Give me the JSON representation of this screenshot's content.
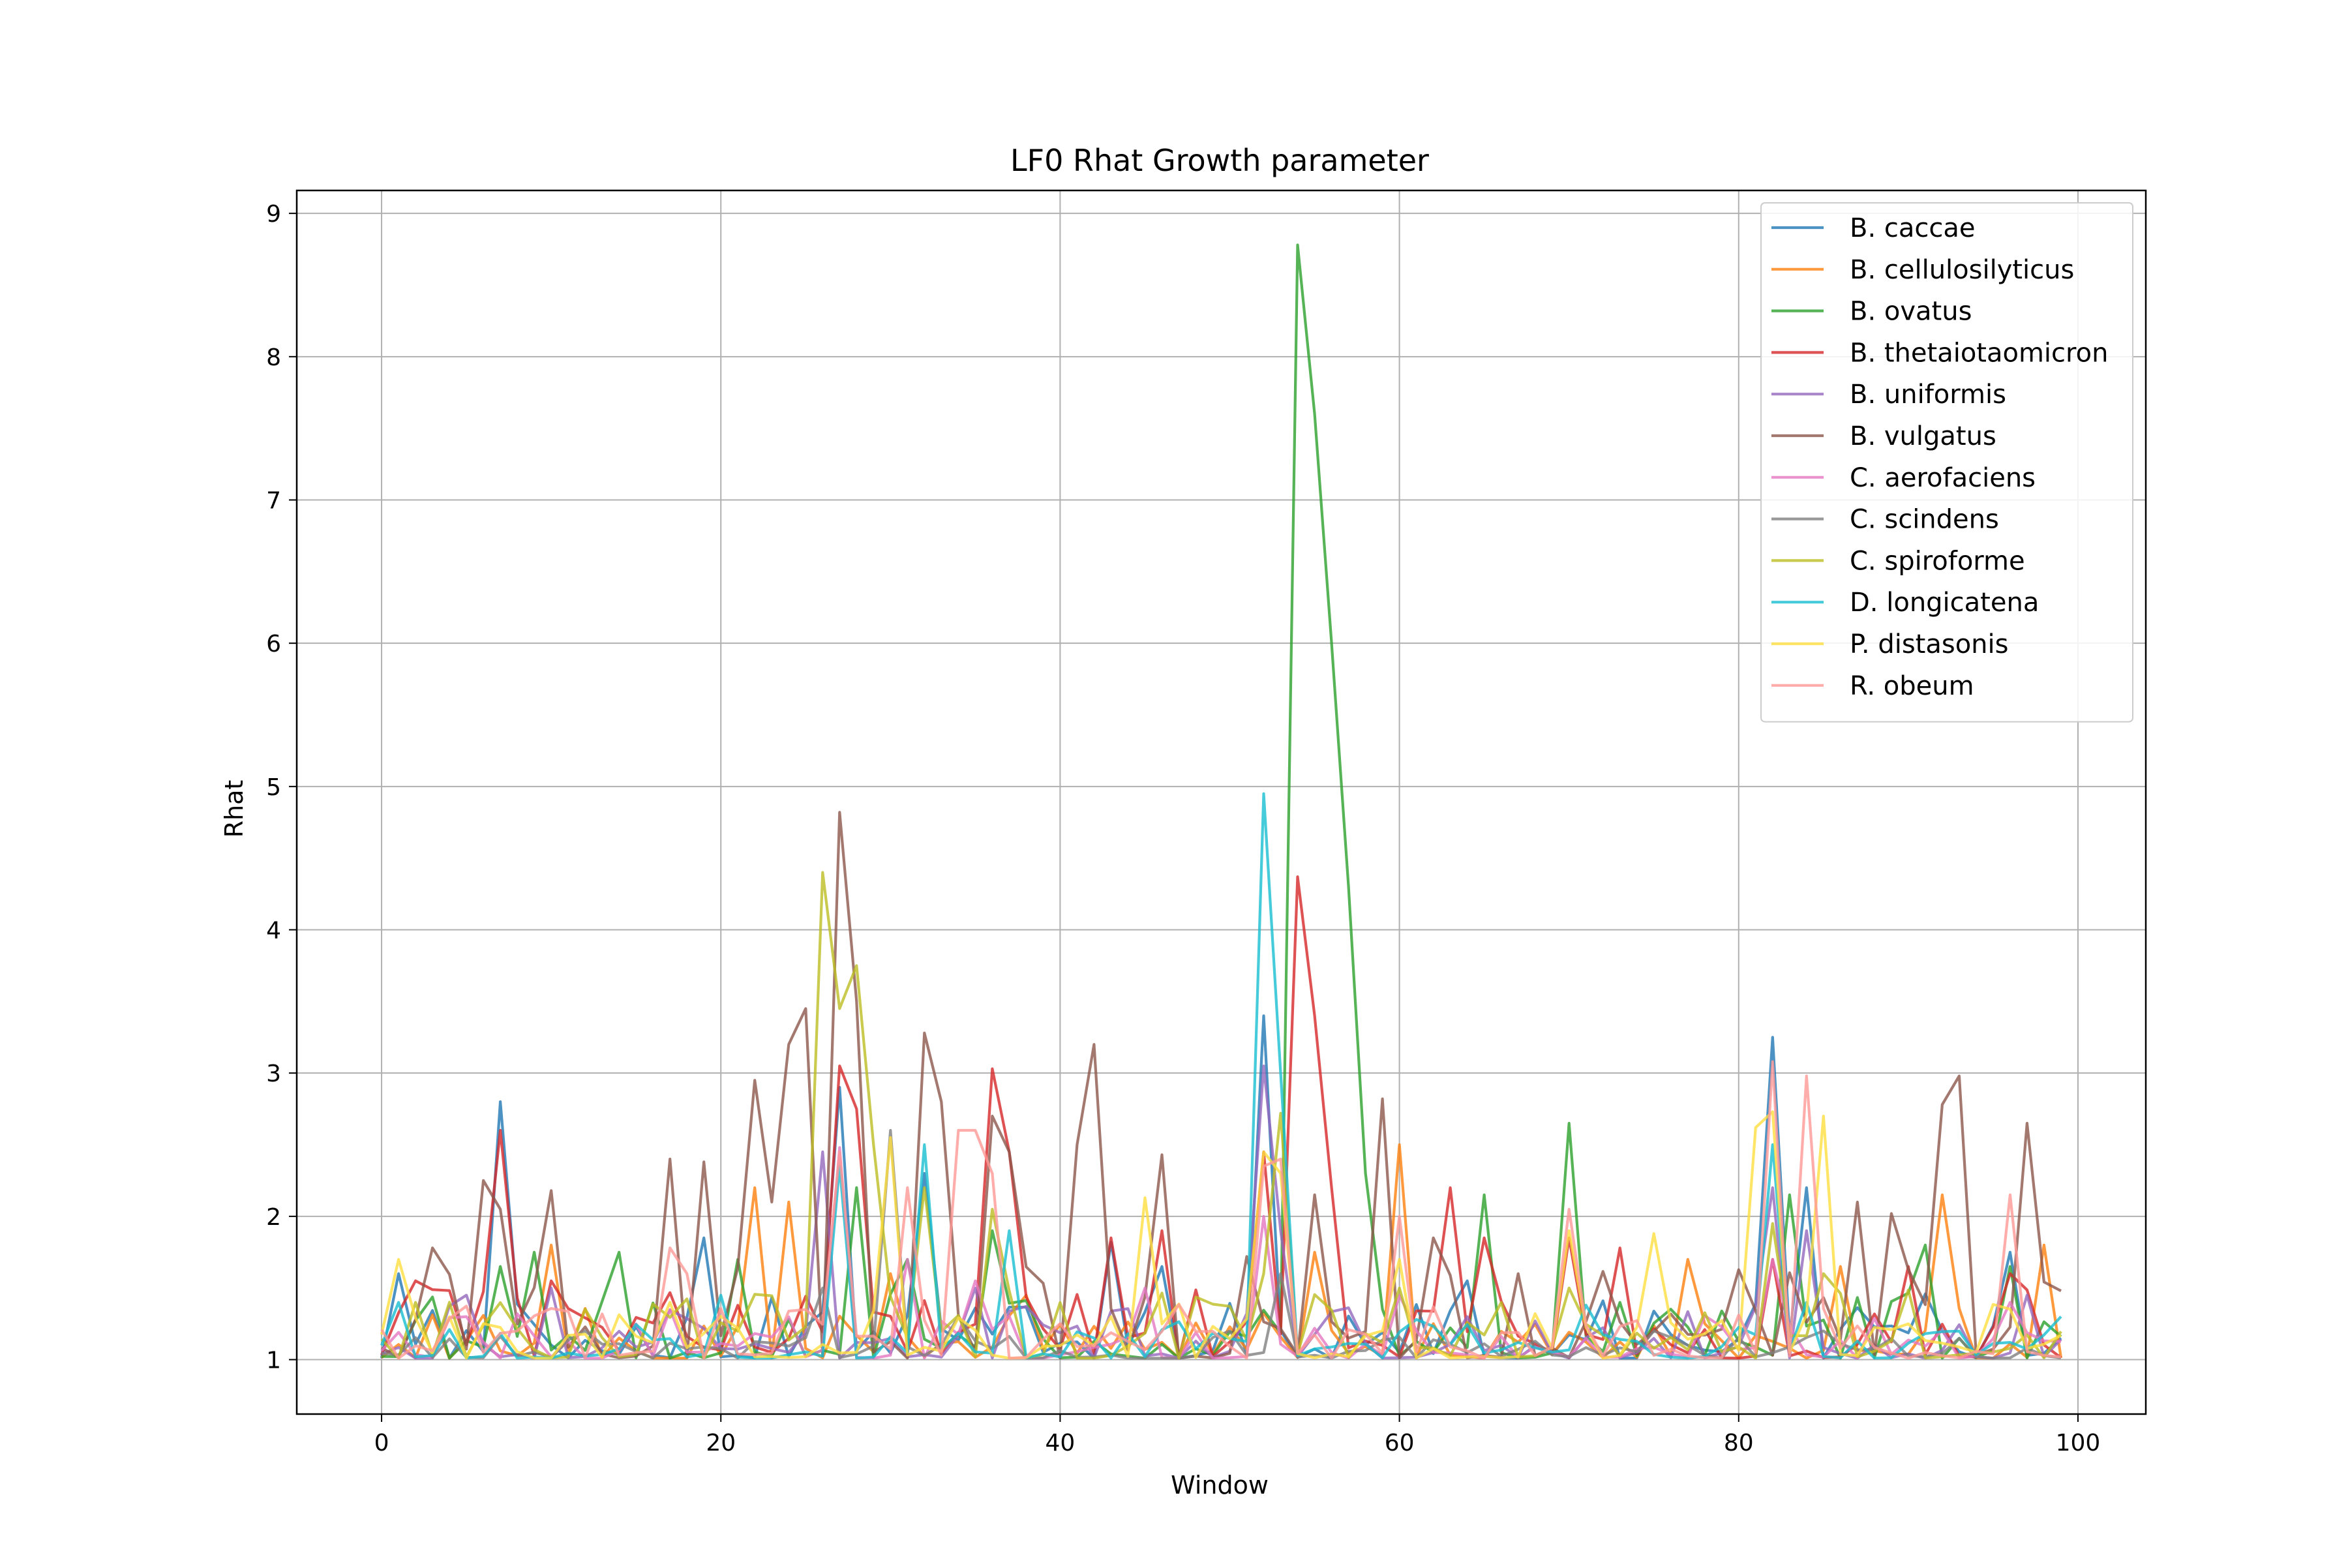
{
  "chart_data": {
    "type": "line",
    "title": "LF0 Rhat Growth parameter",
    "xlabel": "Window",
    "ylabel": "Rhat",
    "xlim": [
      -5,
      104
    ],
    "ylim": [
      0.62,
      9.16
    ],
    "xticks": [
      0,
      20,
      40,
      60,
      80,
      100
    ],
    "yticks": [
      1,
      2,
      3,
      4,
      5,
      6,
      7,
      8,
      9
    ],
    "grid": true,
    "legend_position": "top-right",
    "x_start": 0,
    "x_end": 99,
    "series": [
      {
        "name": "B. caccae",
        "color": "#1f77b4",
        "baseline": 1.15,
        "peaks": [
          [
            1,
            1.6
          ],
          [
            7,
            2.8
          ],
          [
            19,
            1.85
          ],
          [
            27,
            2.9
          ],
          [
            32,
            2.3
          ],
          [
            43,
            1.82
          ],
          [
            46,
            1.65
          ],
          [
            52,
            3.4
          ],
          [
            64,
            1.55
          ],
          [
            82,
            3.25
          ],
          [
            84,
            2.2
          ],
          [
            96,
            1.75
          ]
        ]
      },
      {
        "name": "B. cellulosilyticus",
        "color": "#ff7f0e",
        "baseline": 1.12,
        "peaks": [
          [
            10,
            1.8
          ],
          [
            22,
            2.2
          ],
          [
            24,
            2.1
          ],
          [
            30,
            1.6
          ],
          [
            38,
            1.45
          ],
          [
            55,
            1.75
          ],
          [
            60,
            2.5
          ],
          [
            77,
            1.7
          ],
          [
            86,
            1.65
          ],
          [
            92,
            2.15
          ],
          [
            98,
            1.8
          ]
        ]
      },
      {
        "name": "B. ovatus",
        "color": "#2ca02c",
        "baseline": 1.15,
        "peaks": [
          [
            7,
            1.65
          ],
          [
            9,
            1.75
          ],
          [
            14,
            1.75
          ],
          [
            21,
            1.7
          ],
          [
            28,
            2.2
          ],
          [
            31,
            1.7
          ],
          [
            36,
            1.9
          ],
          [
            54,
            8.78
          ],
          [
            55,
            7.6
          ],
          [
            56,
            6.0
          ],
          [
            57,
            4.3
          ],
          [
            58,
            2.3
          ],
          [
            65,
            2.15
          ],
          [
            70,
            2.65
          ],
          [
            73,
            1.4
          ],
          [
            83,
            2.15
          ],
          [
            91,
            1.8
          ],
          [
            96,
            1.65
          ]
        ]
      },
      {
        "name": "B. thetaiotaomicron",
        "color": "#d62728",
        "baseline": 1.15,
        "peaks": [
          [
            2,
            1.55
          ],
          [
            7,
            2.6
          ],
          [
            10,
            1.55
          ],
          [
            27,
            3.05
          ],
          [
            28,
            2.75
          ],
          [
            36,
            3.03
          ],
          [
            37,
            2.45
          ],
          [
            43,
            1.85
          ],
          [
            46,
            1.9
          ],
          [
            52,
            2.45
          ],
          [
            54,
            4.37
          ],
          [
            55,
            3.4
          ],
          [
            56,
            2.2
          ],
          [
            63,
            2.2
          ],
          [
            65,
            1.85
          ],
          [
            70,
            1.85
          ],
          [
            73,
            1.78
          ],
          [
            82,
            1.7
          ],
          [
            90,
            1.65
          ],
          [
            96,
            1.6
          ]
        ]
      },
      {
        "name": "B. uniformis",
        "color": "#9467bd",
        "baseline": 1.12,
        "peaks": [
          [
            5,
            1.45
          ],
          [
            10,
            1.5
          ],
          [
            26,
            2.45
          ],
          [
            35,
            1.5
          ],
          [
            52,
            3.05
          ],
          [
            53,
            1.9
          ],
          [
            64,
            1.3
          ],
          [
            82,
            2.2
          ],
          [
            84,
            1.9
          ],
          [
            97,
            1.45
          ]
        ]
      },
      {
        "name": "B. vulgatus",
        "color": "#8c564b",
        "baseline": 1.2,
        "peaks": [
          [
            3,
            1.78
          ],
          [
            6,
            2.25
          ],
          [
            7,
            2.05
          ],
          [
            10,
            2.18
          ],
          [
            17,
            2.4
          ],
          [
            19,
            2.38
          ],
          [
            22,
            2.95
          ],
          [
            23,
            2.1
          ],
          [
            24,
            3.2
          ],
          [
            25,
            3.45
          ],
          [
            27,
            4.82
          ],
          [
            28,
            3.5
          ],
          [
            32,
            3.28
          ],
          [
            33,
            2.8
          ],
          [
            36,
            2.7
          ],
          [
            37,
            2.45
          ],
          [
            41,
            2.5
          ],
          [
            42,
            3.2
          ],
          [
            46,
            2.43
          ],
          [
            51,
            1.72
          ],
          [
            55,
            2.15
          ],
          [
            59,
            2.82
          ],
          [
            62,
            1.85
          ],
          [
            67,
            1.6
          ],
          [
            87,
            2.1
          ],
          [
            89,
            2.02
          ],
          [
            92,
            2.78
          ],
          [
            93,
            2.98
          ],
          [
            97,
            2.65
          ],
          [
            99,
            1.48
          ]
        ]
      },
      {
        "name": "C. aerofaciens",
        "color": "#e377c2",
        "baseline": 1.1,
        "peaks": [
          [
            5,
            1.3
          ],
          [
            17,
            1.35
          ],
          [
            27,
            2.48
          ],
          [
            31,
            1.7
          ],
          [
            35,
            1.55
          ],
          [
            45,
            1.5
          ],
          [
            52,
            2.0
          ],
          [
            60,
            1.45
          ],
          [
            82,
            1.7
          ],
          [
            96,
            1.4
          ]
        ]
      },
      {
        "name": "C. scindens",
        "color": "#7f7f7f",
        "baseline": 1.05,
        "peaks": [
          [
            12,
            1.2
          ],
          [
            26,
            1.5
          ],
          [
            30,
            2.6
          ],
          [
            34,
            1.3
          ],
          [
            50,
            1.2
          ],
          [
            53,
            1.6
          ],
          [
            75,
            1.2
          ],
          [
            85,
            1.2
          ],
          [
            93,
            1.15
          ]
        ]
      },
      {
        "name": "C. spiroforme",
        "color": "#bcbd22",
        "baseline": 1.15,
        "peaks": [
          [
            2,
            1.4
          ],
          [
            26,
            4.4
          ],
          [
            27,
            3.45
          ],
          [
            28,
            3.75
          ],
          [
            29,
            2.5
          ],
          [
            32,
            2.2
          ],
          [
            36,
            2.05
          ],
          [
            52,
            1.6
          ],
          [
            53,
            2.72
          ],
          [
            60,
            1.5
          ],
          [
            70,
            1.5
          ],
          [
            82,
            1.95
          ],
          [
            85,
            1.6
          ]
        ]
      },
      {
        "name": "D. longicatena",
        "color": "#17becf",
        "baseline": 1.08,
        "peaks": [
          [
            1,
            1.4
          ],
          [
            20,
            1.45
          ],
          [
            27,
            2.35
          ],
          [
            32,
            2.5
          ],
          [
            37,
            1.9
          ],
          [
            52,
            4.95
          ],
          [
            53,
            3.0
          ],
          [
            61,
            1.28
          ],
          [
            71,
            1.38
          ],
          [
            82,
            2.5
          ],
          [
            84,
            1.4
          ],
          [
            99,
            1.3
          ]
        ]
      },
      {
        "name": "P. distasonis",
        "color": "#ffdf3f",
        "baseline": 1.12,
        "peaks": [
          [
            1,
            1.7
          ],
          [
            17,
            1.4
          ],
          [
            30,
            2.55
          ],
          [
            45,
            2.13
          ],
          [
            52,
            2.45
          ],
          [
            53,
            2.3
          ],
          [
            60,
            1.7
          ],
          [
            70,
            1.9
          ],
          [
            75,
            1.88
          ],
          [
            81,
            2.62
          ],
          [
            82,
            2.73
          ],
          [
            85,
            2.7
          ],
          [
            90,
            1.25
          ]
        ]
      },
      {
        "name": "R. obeum",
        "color": "#ff9896",
        "baseline": 1.12,
        "peaks": [
          [
            17,
            1.78
          ],
          [
            18,
            1.6
          ],
          [
            27,
            2.45
          ],
          [
            31,
            2.2
          ],
          [
            34,
            2.6
          ],
          [
            35,
            2.6
          ],
          [
            36,
            2.3
          ],
          [
            42,
            1.1
          ],
          [
            52,
            2.35
          ],
          [
            53,
            2.4
          ],
          [
            60,
            2.0
          ],
          [
            70,
            2.05
          ],
          [
            82,
            3.08
          ],
          [
            84,
            2.98
          ],
          [
            96,
            2.15
          ]
        ]
      }
    ]
  }
}
